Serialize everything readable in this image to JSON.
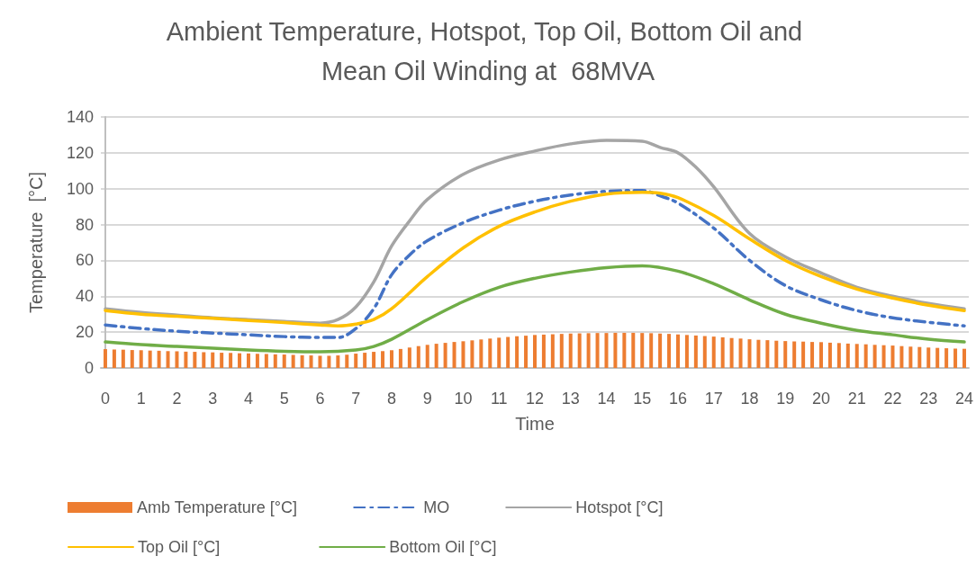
{
  "chart_data": {
    "type": "bar",
    "title": "Ambient Temperature, Hotspot, Top Oil, Bottom Oil and Mean Oil Winding at  68MVA",
    "xlabel": "Time",
    "ylabel": "Temperature  [°C]",
    "xlim": [
      -0.125,
      24.125
    ],
    "xticks": [
      0,
      1,
      2,
      3,
      4,
      5,
      6,
      7,
      8,
      9,
      10,
      11,
      12,
      13,
      14,
      15,
      16,
      17,
      18,
      19,
      20,
      21,
      22,
      23,
      24
    ],
    "ylim": [
      0,
      140
    ],
    "yticks": [
      0,
      20,
      40,
      60,
      80,
      100,
      120,
      140
    ],
    "grid": "y",
    "legend": "bottom",
    "marker": "none",
    "series": [
      {
        "name": "Amb Temperature [°C]",
        "color": "#ed7d31",
        "x": [
          0,
          0.25,
          0.5,
          0.75,
          1,
          1.25,
          1.5,
          1.75,
          2,
          2.25,
          2.5,
          2.75,
          3,
          3.25,
          3.5,
          3.75,
          4,
          4.25,
          4.5,
          4.75,
          5,
          5.25,
          5.5,
          5.75,
          6,
          6.25,
          6.5,
          6.75,
          7,
          7.25,
          7.5,
          7.75,
          8,
          8.25,
          8.5,
          8.75,
          9,
          9.25,
          9.5,
          9.75,
          10,
          10.25,
          10.5,
          10.75,
          11,
          11.25,
          11.5,
          11.75,
          12,
          12.25,
          12.5,
          12.75,
          13,
          13.25,
          13.5,
          13.75,
          14,
          14.25,
          14.5,
          14.75,
          15,
          15.25,
          15.5,
          15.75,
          16,
          16.25,
          16.5,
          16.75,
          17,
          17.25,
          17.5,
          17.75,
          18,
          18.25,
          18.5,
          18.75,
          19,
          19.25,
          19.5,
          19.75,
          20,
          20.25,
          20.5,
          20.75,
          21,
          21.25,
          21.5,
          21.75,
          22,
          22.25,
          22.5,
          22.75,
          23,
          23.25,
          23.5,
          23.75,
          24
        ],
        "values": [
          10.5,
          10.3,
          10.2,
          10.0,
          9.9,
          9.7,
          9.6,
          9.4,
          9.3,
          9.1,
          9.0,
          8.8,
          8.7,
          8.5,
          8.4,
          8.2,
          8.1,
          7.9,
          7.8,
          7.6,
          7.5,
          7.3,
          7.1,
          7.0,
          6.8,
          6.8,
          7.0,
          7.4,
          8.0,
          8.5,
          9.0,
          9.4,
          9.9,
          10.6,
          11.4,
          12.2,
          12.9,
          13.5,
          14.0,
          14.5,
          14.9,
          15.4,
          15.9,
          16.4,
          16.9,
          17.3,
          17.7,
          18.0,
          18.4,
          18.6,
          18.8,
          19.0,
          19.2,
          19.3,
          19.4,
          19.5,
          19.5,
          19.6,
          19.6,
          19.6,
          19.5,
          19.4,
          19.2,
          19.0,
          18.7,
          18.4,
          18.1,
          17.8,
          17.5,
          17.1,
          16.7,
          16.4,
          16.0,
          15.7,
          15.5,
          15.2,
          15.0,
          14.8,
          14.7,
          14.5,
          14.4,
          14.1,
          13.9,
          13.6,
          13.4,
          13.2,
          12.9,
          12.7,
          12.5,
          12.2,
          11.9,
          11.7,
          11.4,
          11.2,
          11.0,
          10.8,
          10.7
        ]
      },
      {
        "name": "MO",
        "type": "line",
        "line_style": "dashed",
        "color": "#4472c4",
        "x": [
          0,
          1,
          2,
          3,
          4,
          5,
          6,
          6.5,
          7,
          7.5,
          8,
          8.5,
          9,
          10,
          11,
          12,
          13,
          14,
          15,
          15.5,
          16,
          17,
          18,
          19,
          20,
          21,
          22,
          23,
          24
        ],
        "values": [
          24,
          22,
          20.5,
          19.5,
          18.5,
          17.5,
          17,
          17,
          22,
          33,
          52,
          63,
          71,
          81,
          88,
          93,
          96.5,
          98.5,
          99,
          96,
          92,
          78,
          60,
          46,
          38,
          32,
          28,
          25.5,
          23.5
        ]
      },
      {
        "name": "Hotspot [°C]",
        "type": "line",
        "line_style": "solid",
        "color": "#a5a5a5",
        "x": [
          0,
          1,
          2,
          3,
          4,
          5,
          6,
          6.5,
          7,
          7.5,
          8,
          8.5,
          9,
          10,
          11,
          12,
          13,
          14,
          15,
          15.5,
          16,
          16.5,
          17,
          18,
          19,
          20,
          21,
          22,
          23,
          24
        ],
        "values": [
          33,
          31,
          29.5,
          28,
          27,
          26,
          25,
          27,
          34,
          48,
          68,
          82,
          94,
          108,
          116,
          121,
          125,
          127,
          126.5,
          123,
          120,
          112,
          101,
          75,
          62,
          53,
          45,
          40,
          36,
          33
        ]
      },
      {
        "name": "Top Oil [°C]",
        "type": "line",
        "line_style": "solid",
        "color": "#ffc000",
        "x": [
          0,
          1,
          2,
          3,
          4,
          5,
          6,
          6.5,
          7,
          7.5,
          8,
          9,
          10,
          11,
          12,
          13,
          14,
          15,
          15.5,
          16,
          17,
          18,
          19,
          20,
          21,
          22,
          23,
          24
        ],
        "values": [
          32,
          30,
          28.8,
          27.7,
          26.5,
          25.3,
          24,
          23.5,
          24.5,
          27,
          33,
          51,
          67,
          79,
          87,
          93,
          97,
          98,
          97.5,
          95,
          85,
          72,
          60,
          51,
          44,
          39,
          35,
          32
        ]
      },
      {
        "name": "Bottom Oil [°C]",
        "type": "line",
        "line_style": "solid",
        "color": "#70ad47",
        "x": [
          0,
          1,
          2,
          3,
          4,
          5,
          6,
          7,
          7.5,
          8,
          9,
          10,
          11,
          12,
          13,
          14,
          15,
          16,
          17,
          18,
          19,
          20,
          21,
          22,
          23,
          24
        ],
        "values": [
          14.5,
          13,
          12,
          11,
          10,
          9.3,
          9,
          10,
          12,
          16,
          27,
          37,
          45,
          50,
          53.5,
          56,
          57,
          54,
          47,
          38,
          30,
          25,
          21,
          18.5,
          16,
          14.5
        ]
      }
    ]
  }
}
